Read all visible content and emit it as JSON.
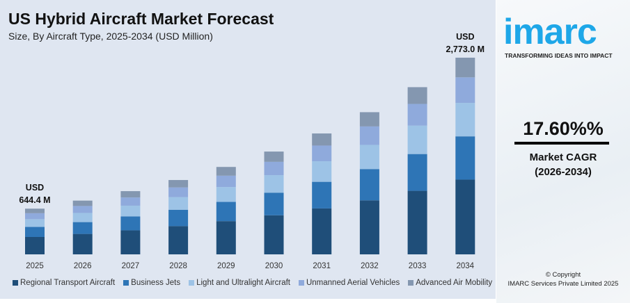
{
  "chart_data": {
    "type": "bar",
    "stacked": true,
    "title": "US Hybrid Aircraft Market Forecast",
    "subtitle": "Size, By Aircraft Type, 2025-2034 (USD Million)",
    "categories": [
      "2025",
      "2026",
      "2027",
      "2028",
      "2029",
      "2030",
      "2031",
      "2032",
      "2033",
      "2034"
    ],
    "series": [
      {
        "name": "Regional Transport Aircraft",
        "color": "#1f4e79",
        "values": [
          244.9,
          288.0,
          338.7,
          398.2,
          468.4,
          550.8,
          647.7,
          761.7,
          895.8,
          1053.7
        ]
      },
      {
        "name": "Business Jets",
        "color": "#2e75b6",
        "values": [
          141.8,
          166.7,
          196.1,
          230.6,
          271.1,
          318.9,
          375.0,
          441.0,
          518.6,
          610.1
        ]
      },
      {
        "name": "Light and Ultralight Aircraft",
        "color": "#9dc3e6",
        "values": [
          109.5,
          128.8,
          151.5,
          178.2,
          209.5,
          246.4,
          289.8,
          340.8,
          400.7,
          471.4
        ]
      },
      {
        "name": "Unmanned Aerial Vehicles",
        "color": "#8faadc",
        "values": [
          83.8,
          98.5,
          115.9,
          136.2,
          160.2,
          188.4,
          221.6,
          260.6,
          306.4,
          360.5
        ]
      },
      {
        "name": "Advanced Air Mobility",
        "color": "#8497b0",
        "values": [
          64.4,
          75.8,
          89.0,
          104.8,
          123.3,
          144.9,
          170.4,
          200.4,
          235.8,
          277.3
        ]
      }
    ],
    "annotations": [
      {
        "category": "2025",
        "line1": "USD",
        "line2": "644.4 M"
      },
      {
        "category": "2034",
        "line1": "USD",
        "line2": "2,773.0 M"
      }
    ],
    "grid": false,
    "legend": "bottom"
  },
  "side": {
    "logo": "imarc",
    "tagline": "TRANSFORMING IDEAS INTO IMPACT",
    "cagr": "17.60%%",
    "cagr_label": "Market CAGR",
    "cagr_period": "(2026-2034)",
    "copyright": "© Copyright",
    "company": "IMARC Services Private Limited 2025"
  }
}
